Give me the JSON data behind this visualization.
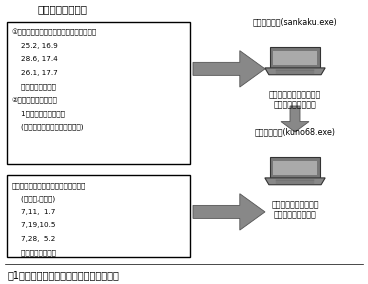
{
  "title": "図1　計算に必要なデータと計算の流れ図",
  "header_label": "【必要なデータ】",
  "box1_lines": [
    "①調査期間中の日別最高・最低気温データ",
    "    25.2, 16.9",
    "    28.6, 17.4",
    "    26.1, 17.7",
    "    ・・・・・・・・",
    "②対象昆虫の発育零点",
    "    1世代の発育所要日度",
    "    (発育停止温度，発育限界温度)"
  ],
  "box2_lines": [
    "複数回の調査による個体数推移データ",
    "    (月，日,個体数)",
    "    7,11,  1.7",
    "    7,19,10.5",
    "    7,28,  5.2",
    "    ・・・・・・・・"
  ],
  "prog1_label": "プログラム１(sankaku.exe)",
  "prog2_label": "プログラム２(kuno68.exe)",
  "desc1_line1": "三角法により日別の有効",
  "desc1_line2": "温量の積算値を計算",
  "desc2_line1": "世代区分を行い世代あ",
  "desc2_line2": "たり平均密度を計算",
  "bg_color": "#ffffff",
  "box_edge_color": "#000000",
  "text_color": "#000000",
  "arrow_fill": "#888888",
  "arrow_edge": "#555555"
}
